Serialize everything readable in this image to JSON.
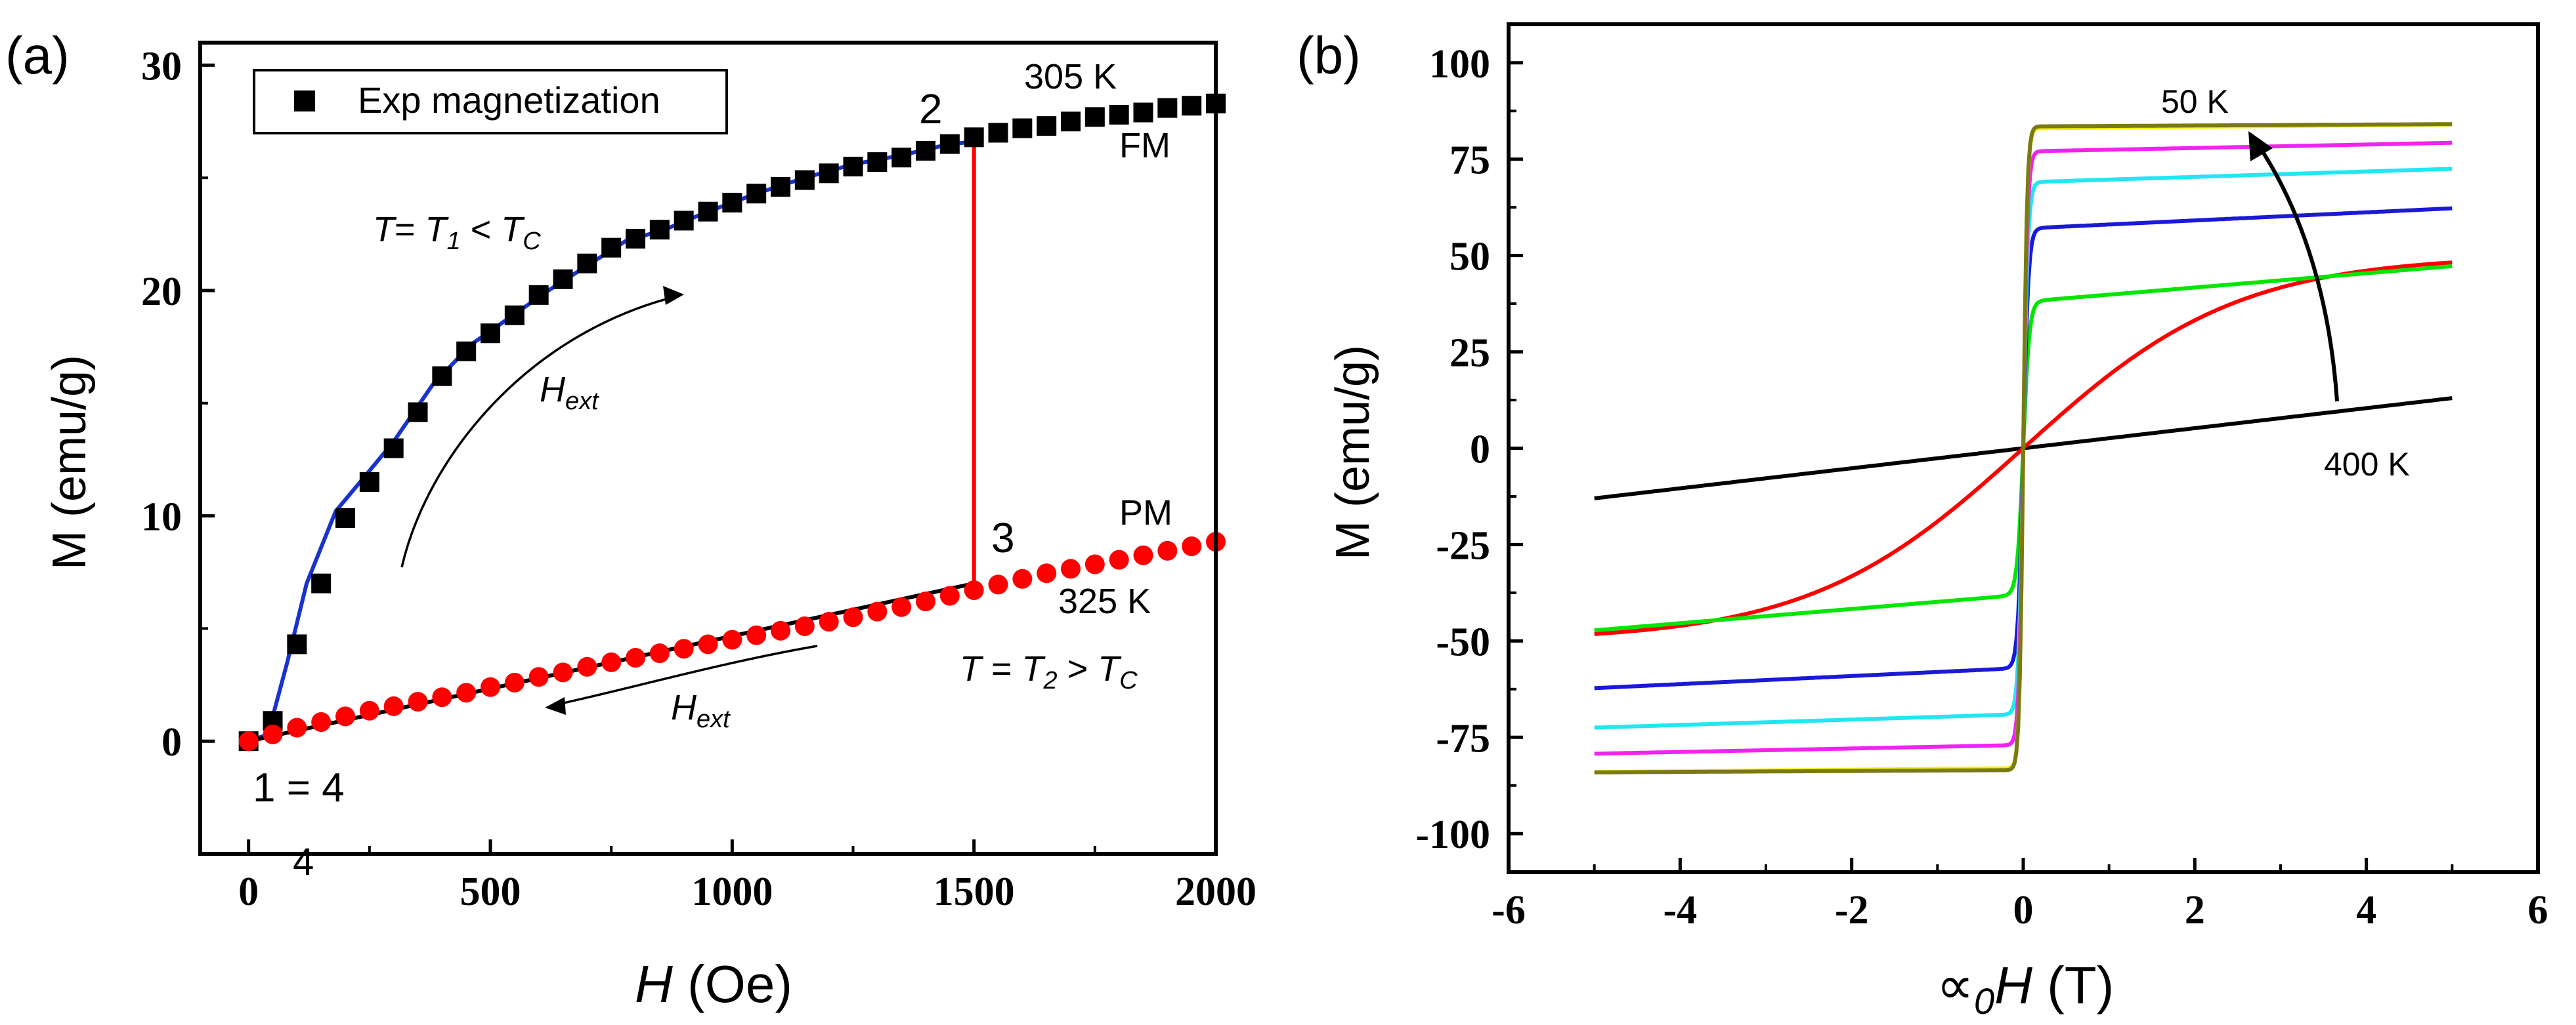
{
  "chart_data": [
    {
      "type": "scatter",
      "panel_label": "(a)",
      "xlabel_symbol": "H",
      "xlabel_unit": " (Oe)",
      "ylabel": "M (emu/g)",
      "xlim": [
        -100,
        2000
      ],
      "ylim": [
        -5,
        31
      ],
      "xticks": [
        0,
        500,
        1000,
        1500,
        2000
      ],
      "yticks": [
        0,
        10,
        20,
        30
      ],
      "legend_label": "Exp magnetization",
      "legend_position": "top-left",
      "series": [
        {
          "name": "305 K",
          "marker": "square",
          "color": "#000000",
          "x": [
            0,
            50,
            100,
            150,
            200,
            250,
            300,
            350,
            400,
            450,
            500,
            550,
            600,
            650,
            700,
            750,
            800,
            850,
            900,
            950,
            1000,
            1050,
            1100,
            1150,
            1200,
            1250,
            1300,
            1350,
            1400,
            1450,
            1500,
            1550,
            1600,
            1650,
            1700,
            1750,
            1800,
            1850,
            1900,
            1950,
            2000
          ],
          "y": [
            0,
            0.9,
            4.3,
            7.0,
            9.9,
            11.5,
            13.0,
            14.6,
            16.2,
            17.3,
            18.1,
            18.9,
            19.8,
            20.5,
            21.2,
            21.9,
            22.3,
            22.7,
            23.1,
            23.5,
            23.9,
            24.3,
            24.6,
            24.9,
            25.2,
            25.5,
            25.7,
            25.9,
            26.2,
            26.5,
            26.8,
            27.0,
            27.2,
            27.3,
            27.5,
            27.7,
            27.8,
            27.9,
            28.1,
            28.2,
            28.3
          ]
        },
        {
          "name": "325 K",
          "marker": "circle",
          "color": "#ff0000",
          "x": [
            0,
            50,
            100,
            150,
            200,
            250,
            300,
            350,
            400,
            450,
            500,
            550,
            600,
            650,
            700,
            750,
            800,
            850,
            900,
            950,
            1000,
            1050,
            1100,
            1150,
            1200,
            1250,
            1300,
            1350,
            1400,
            1450,
            1500,
            1550,
            1600,
            1650,
            1700,
            1750,
            1800,
            1850,
            1900,
            1950,
            2000
          ],
          "y": [
            0,
            0.3,
            0.6,
            0.85,
            1.1,
            1.35,
            1.55,
            1.75,
            1.95,
            2.15,
            2.4,
            2.6,
            2.85,
            3.05,
            3.3,
            3.5,
            3.7,
            3.9,
            4.1,
            4.3,
            4.5,
            4.7,
            4.9,
            5.1,
            5.3,
            5.5,
            5.75,
            5.95,
            6.2,
            6.45,
            6.7,
            6.95,
            7.2,
            7.45,
            7.65,
            7.85,
            8.05,
            8.25,
            8.45,
            8.65,
            8.85
          ]
        }
      ],
      "fits": [
        {
          "name": "FM branch fit",
          "color": "#1a33cc",
          "x": [
            0,
            40,
            80,
            120,
            180,
            250,
            300,
            380,
            460,
            540,
            620,
            700,
            780,
            860,
            950,
            1050,
            1150,
            1250,
            1350,
            1450,
            1500
          ],
          "y": [
            0,
            0.3,
            3.5,
            7.0,
            10.2,
            12.0,
            13.3,
            15.8,
            17.6,
            18.8,
            20.0,
            21.1,
            22.2,
            22.7,
            23.5,
            24.3,
            25.0,
            25.6,
            26.0,
            26.5,
            26.6
          ]
        },
        {
          "name": "PM branch fit",
          "color": "#000000",
          "x": [
            0,
            1500
          ],
          "y": [
            0,
            7.0
          ]
        },
        {
          "name": "transition",
          "color": "#ff0000",
          "x": [
            1500,
            1500
          ],
          "y": [
            26.6,
            7.0
          ]
        }
      ],
      "annotations": {
        "point_2": "2",
        "point_3": "3",
        "point_1_4": "1 = 4",
        "stray_4": "4",
        "temp_fm": "305 K",
        "phase_fm": "FM",
        "phase_pm": "PM",
        "temp_pm": "325 K",
        "cond_fm_t": "T",
        "cond_fm_mid": "= ",
        "cond_fm_t1": "T",
        "cond_fm_t1_sub": "1",
        "cond_fm_lt": " < ",
        "cond_fm_tc": "T",
        "cond_fm_tc_sub": "C",
        "cond_pm_t": "T",
        "cond_pm_mid": " = ",
        "cond_pm_t2": "T",
        "cond_pm_t2_sub": "2",
        "cond_pm_gt": " > ",
        "cond_pm_tc": "T",
        "cond_pm_tc_sub": "C",
        "hext_main": "H",
        "hext_sub": "ext"
      }
    },
    {
      "type": "line",
      "panel_label": "(b)",
      "xlabel_symbol": "∝",
      "xlabel_sub": "0",
      "xlabel_H": "H",
      "xlabel_unit": " (T)",
      "ylabel": "M (emu/g)",
      "xlim": [
        -6,
        6
      ],
      "ylim": [
        -110,
        110
      ],
      "xticks": [
        -6,
        -4,
        -2,
        0,
        2,
        4,
        6
      ],
      "yticks": [
        -100,
        -75,
        -50,
        -25,
        0,
        25,
        50,
        75,
        100
      ],
      "series": [
        {
          "name": "400 K",
          "color": "#000000",
          "Ms": 0,
          "a": 1,
          "chi": 2.6
        },
        {
          "name": "red",
          "color": "#ff0000",
          "Ms": 50,
          "a": 2.5,
          "chi": 0
        },
        {
          "name": "green",
          "color": "#00e600",
          "Ms": 38,
          "a": 0.07,
          "chi": 1.85
        },
        {
          "name": "blue",
          "color": "#1a1ad6",
          "Ms": 57,
          "a": 0.06,
          "chi": 1.05
        },
        {
          "name": "cyan",
          "color": "#22e6f2",
          "Ms": 69,
          "a": 0.055,
          "chi": 0.7
        },
        {
          "name": "magenta",
          "color": "#f024f0",
          "Ms": 77,
          "a": 0.05,
          "chi": 0.45
        },
        {
          "name": "yellow",
          "color": "#f2f200",
          "Ms": 83,
          "a": 0.045,
          "chi": 0.2
        },
        {
          "name": "50 K",
          "color": "#7a7a14",
          "Ms": 83.5,
          "a": 0.045,
          "chi": 0.12
        }
      ],
      "annotations": {
        "label_high": "50 K",
        "label_low": "400 K"
      }
    }
  ]
}
